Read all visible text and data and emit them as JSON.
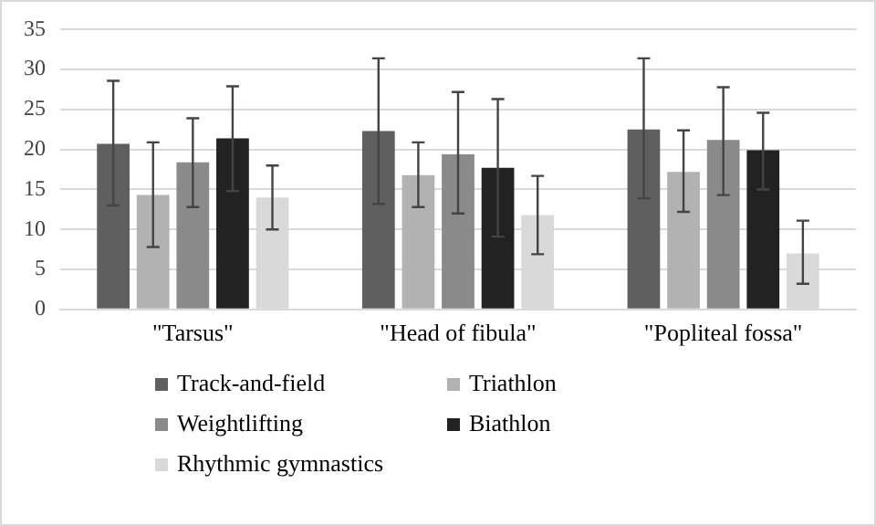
{
  "chart_data": {
    "type": "bar",
    "categories": [
      "\"Tarsus\"",
      "\"Head of fibula\"",
      "\"Popliteal fossa\""
    ],
    "series": [
      {
        "name": "Track-and-field",
        "color": "#5f5f5f",
        "values": [
          20.7,
          22.3,
          22.5
        ],
        "errors": [
          [
            13.0,
            28.6
          ],
          [
            13.2,
            31.4
          ],
          [
            13.9,
            31.4
          ]
        ]
      },
      {
        "name": "Triathlon",
        "color": "#b2b2b2",
        "values": [
          14.3,
          16.8,
          17.2
        ],
        "errors": [
          [
            7.8,
            20.9
          ],
          [
            12.8,
            20.9
          ],
          [
            12.2,
            22.4
          ]
        ]
      },
      {
        "name": "Weightlifting",
        "color": "#8a8a8a",
        "values": [
          18.4,
          19.4,
          21.2
        ],
        "errors": [
          [
            12.8,
            23.9
          ],
          [
            12.0,
            27.2
          ],
          [
            14.3,
            27.8
          ]
        ]
      },
      {
        "name": "Biathlon",
        "color": "#222222",
        "values": [
          21.4,
          17.7,
          19.9
        ],
        "errors": [
          [
            14.8,
            27.9
          ],
          [
            9.1,
            26.3
          ],
          [
            15.0,
            24.6
          ]
        ]
      },
      {
        "name": "Rhythmic gymnastics",
        "color": "#d9d9d9",
        "values": [
          14.0,
          11.8,
          7.0
        ],
        "errors": [
          [
            10.0,
            18.0
          ],
          [
            6.9,
            16.7
          ],
          [
            3.2,
            11.1
          ]
        ]
      }
    ],
    "ylim": [
      0,
      35
    ],
    "yticks": [
      0,
      5,
      10,
      15,
      20,
      25,
      30,
      35
    ],
    "grid": "y",
    "legend": "bottom"
  }
}
